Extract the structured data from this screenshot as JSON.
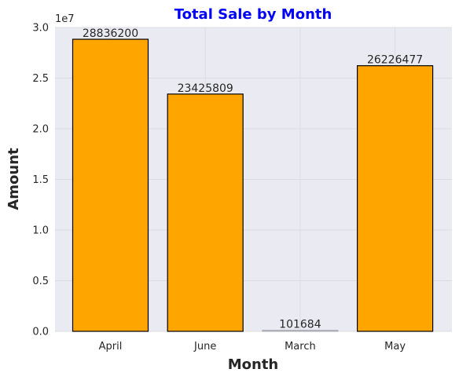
{
  "chart_data": {
    "type": "bar",
    "title": "Total Sale by Month",
    "xlabel": "Month",
    "ylabel": "Amount",
    "y_scale_label": "1e7",
    "categories": [
      "April",
      "June",
      "March",
      "May"
    ],
    "values": [
      28836200,
      23425809,
      101684,
      26226477
    ],
    "data_labels": [
      "28836200",
      "23425809",
      "101684",
      "26226477"
    ],
    "ylim": [
      0,
      30000000
    ],
    "y_ticks": [
      0,
      5000000,
      10000000,
      15000000,
      20000000,
      25000000,
      30000000
    ],
    "y_tick_labels": [
      "0.0",
      "0.5",
      "1.0",
      "1.5",
      "2.0",
      "2.5",
      "3.0"
    ],
    "grid": true,
    "colors": {
      "bar_fill": "#FFA500",
      "bar_edge": "#000000",
      "plot_background": "#EAEAF2",
      "grid": "#DCDCE0",
      "title": "#0000FF"
    }
  }
}
